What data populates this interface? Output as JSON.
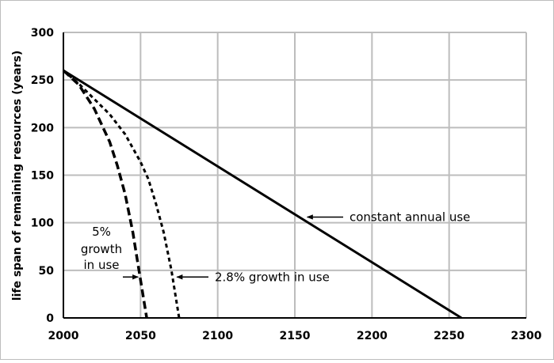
{
  "chart_data": {
    "type": "line",
    "title": "",
    "xlabel": "",
    "ylabel": "life span of remaining resources (years)",
    "xlim": [
      2000,
      2300
    ],
    "ylim": [
      0,
      300
    ],
    "xticks": [
      2000,
      2050,
      2100,
      2150,
      2200,
      2250,
      2300
    ],
    "yticks": [
      0,
      50,
      100,
      150,
      200,
      250,
      300
    ],
    "grid": true,
    "series": [
      {
        "name": "constant annual use",
        "style": "solid",
        "x": [
          2000,
          2258
        ],
        "y": [
          260,
          0
        ]
      },
      {
        "name": "2.8% growth in use",
        "style": "dotted",
        "x": [
          2000,
          2010,
          2020,
          2030,
          2040,
          2050,
          2055,
          2060,
          2065,
          2070,
          2075
        ],
        "y": [
          260,
          246,
          230,
          214,
          193,
          164,
          146,
          120,
          90,
          50,
          0
        ]
      },
      {
        "name": "5% growth in use",
        "style": "dashed",
        "x": [
          2000,
          2010,
          2020,
          2030,
          2035,
          2040,
          2045,
          2048,
          2050,
          2052,
          2054
        ],
        "y": [
          260,
          245,
          220,
          185,
          160,
          130,
          90,
          60,
          40,
          20,
          0
        ]
      }
    ],
    "annotations": [
      {
        "id": "constant",
        "text": "constant annual use",
        "arrow_to": [
          2157,
          106
        ]
      },
      {
        "id": "growth28",
        "text": "2.8% growth in use",
        "arrow_to": [
          2072,
          43
        ]
      },
      {
        "id": "growth5",
        "lines": [
          "5%",
          "growth",
          "in use"
        ],
        "arrow_to": [
          2050,
          43
        ]
      }
    ]
  }
}
